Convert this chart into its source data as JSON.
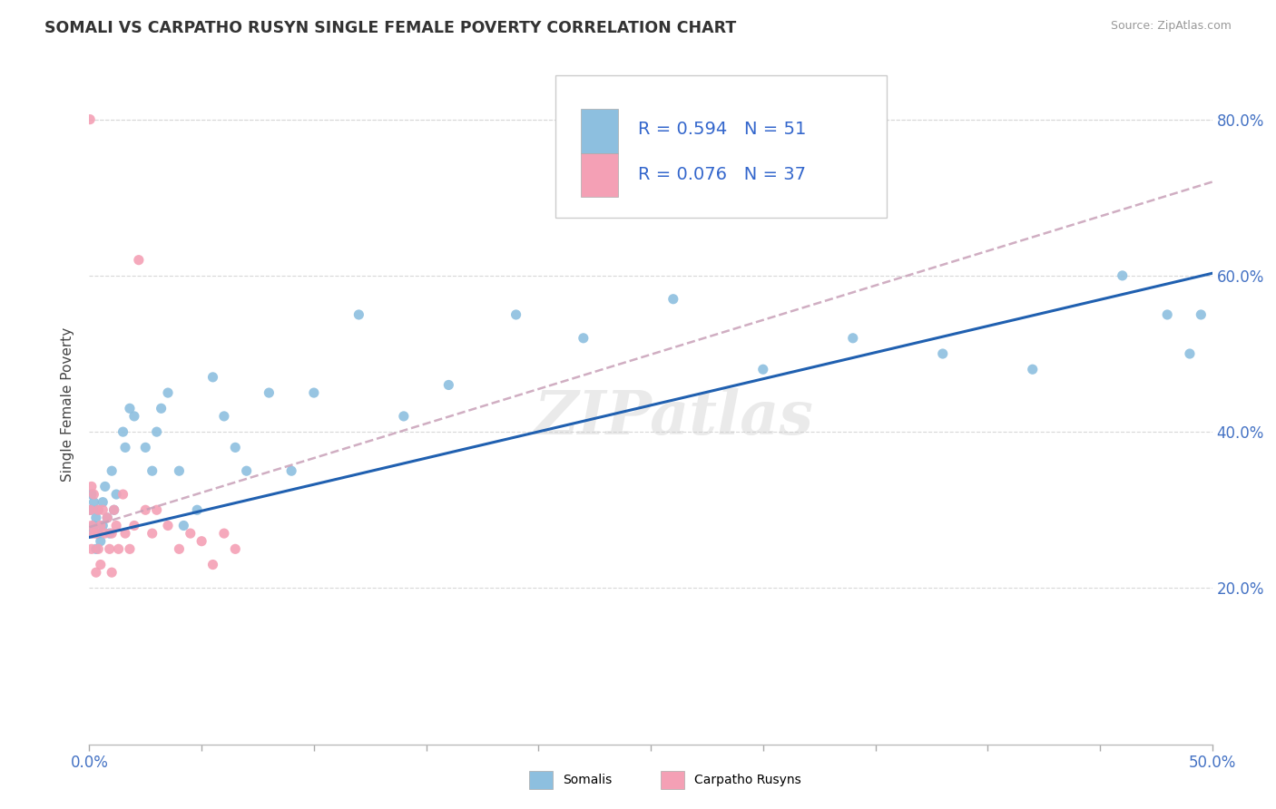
{
  "title": "SOMALI VS CARPATHO RUSYN SINGLE FEMALE POVERTY CORRELATION CHART",
  "source": "Source: ZipAtlas.com",
  "ylabel": "Single Female Poverty",
  "yaxis_values": [
    0.2,
    0.4,
    0.6,
    0.8
  ],
  "xlim": [
    0.0,
    0.5
  ],
  "ylim": [
    0.0,
    0.87
  ],
  "somali_R": 0.594,
  "somali_N": 51,
  "carpatho_R": 0.076,
  "carpatho_N": 37,
  "somali_color": "#8dbfdf",
  "carpatho_color": "#f4a0b5",
  "somali_line_color": "#2060b0",
  "carpatho_line_color": "#c8a0b8",
  "watermark": "ZIPatlas",
  "somali_x": [
    0.0005,
    0.001,
    0.001,
    0.002,
    0.002,
    0.003,
    0.003,
    0.004,
    0.004,
    0.005,
    0.006,
    0.006,
    0.007,
    0.008,
    0.009,
    0.01,
    0.011,
    0.012,
    0.015,
    0.016,
    0.018,
    0.02,
    0.025,
    0.028,
    0.03,
    0.032,
    0.035,
    0.04,
    0.042,
    0.048,
    0.055,
    0.06,
    0.065,
    0.07,
    0.08,
    0.09,
    0.1,
    0.12,
    0.14,
    0.16,
    0.19,
    0.22,
    0.26,
    0.3,
    0.34,
    0.38,
    0.42,
    0.46,
    0.48,
    0.49,
    0.495
  ],
  "somali_y": [
    0.3,
    0.27,
    0.32,
    0.28,
    0.31,
    0.25,
    0.29,
    0.27,
    0.3,
    0.26,
    0.31,
    0.28,
    0.33,
    0.29,
    0.27,
    0.35,
    0.3,
    0.32,
    0.4,
    0.38,
    0.43,
    0.42,
    0.38,
    0.35,
    0.4,
    0.43,
    0.45,
    0.35,
    0.28,
    0.3,
    0.47,
    0.42,
    0.38,
    0.35,
    0.45,
    0.35,
    0.45,
    0.55,
    0.42,
    0.46,
    0.55,
    0.52,
    0.57,
    0.48,
    0.52,
    0.5,
    0.48,
    0.6,
    0.55,
    0.5,
    0.55
  ],
  "carpatho_x": [
    0.0003,
    0.0005,
    0.001,
    0.001,
    0.001,
    0.002,
    0.002,
    0.003,
    0.003,
    0.004,
    0.004,
    0.005,
    0.005,
    0.006,
    0.007,
    0.008,
    0.009,
    0.01,
    0.01,
    0.011,
    0.012,
    0.013,
    0.015,
    0.016,
    0.018,
    0.02,
    0.022,
    0.025,
    0.028,
    0.03,
    0.035,
    0.04,
    0.045,
    0.05,
    0.055,
    0.06,
    0.065
  ],
  "carpatho_y": [
    0.8,
    0.3,
    0.25,
    0.33,
    0.28,
    0.27,
    0.32,
    0.27,
    0.22,
    0.25,
    0.3,
    0.28,
    0.23,
    0.3,
    0.27,
    0.29,
    0.25,
    0.27,
    0.22,
    0.3,
    0.28,
    0.25,
    0.32,
    0.27,
    0.25,
    0.28,
    0.62,
    0.3,
    0.27,
    0.3,
    0.28,
    0.25,
    0.27,
    0.26,
    0.23,
    0.27,
    0.25
  ]
}
